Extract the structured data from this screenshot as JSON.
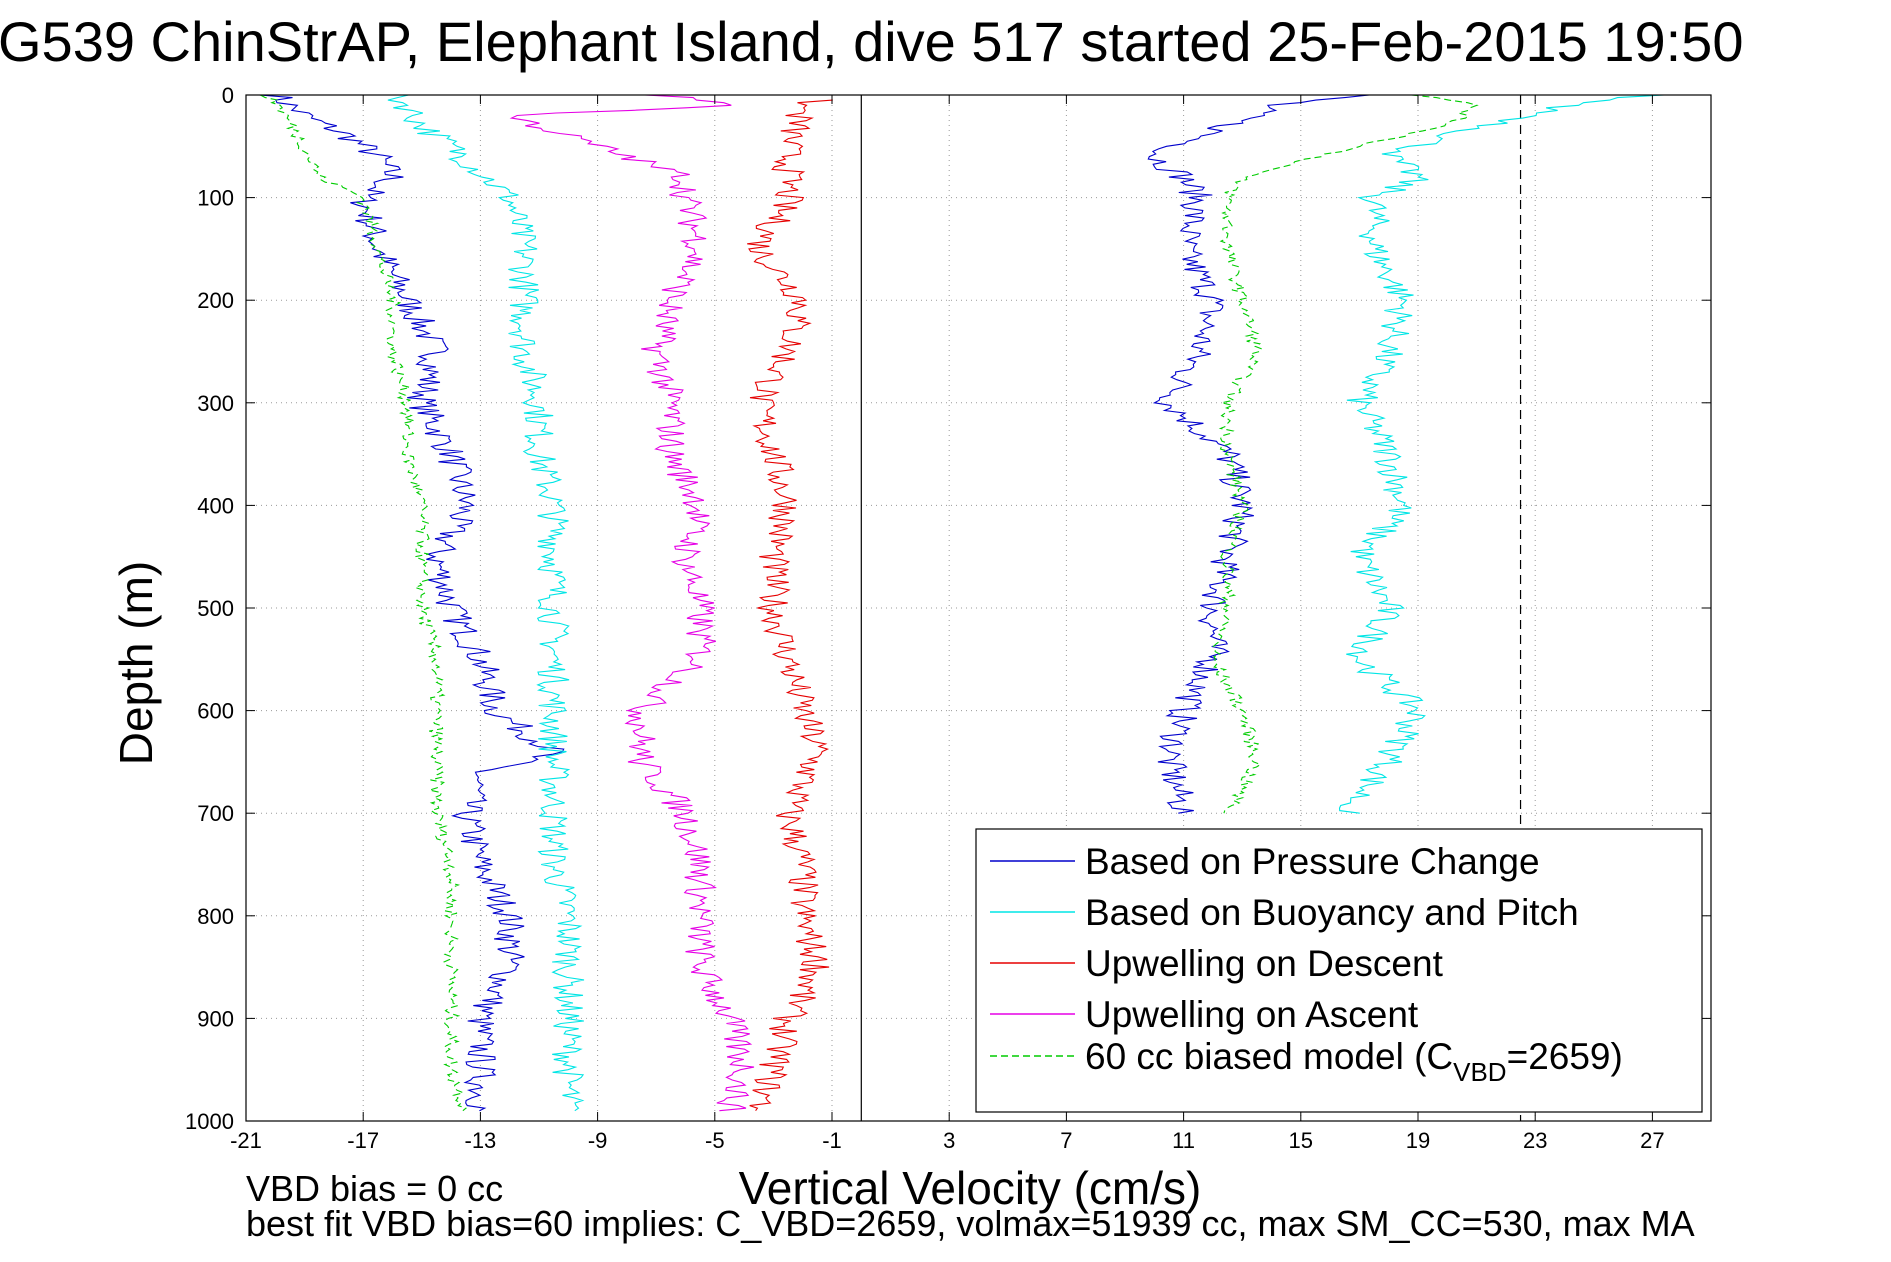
{
  "title": "G539 ChinStrAP, Elephant Island, dive 517 started 25-Feb-2015 19:50",
  "footer": {
    "line1": "VBD bias = 0 cc",
    "line2": "best fit VBD bias=60 implies: C_VBD=2659, volmax=51939 cc, max SM_CC=530, max MA"
  },
  "chart_data": {
    "type": "line",
    "xlabel": "Vertical Velocity (cm/s)",
    "ylabel": "Depth (m)",
    "xlim": [
      -21,
      29
    ],
    "ylim": [
      0,
      1000
    ],
    "y_reversed": true,
    "xticks": [
      -21,
      -17,
      -13,
      -9,
      -5,
      -1,
      3,
      7,
      11,
      15,
      19,
      23,
      27
    ],
    "yticks": [
      0,
      100,
      200,
      300,
      400,
      500,
      600,
      700,
      800,
      900,
      1000
    ],
    "grid": true,
    "legend_position": "bottom-right",
    "reference_lines": [
      {
        "x": 0,
        "style": "solid",
        "color": "#000000"
      },
      {
        "x": 22.5,
        "style": "dashed",
        "color": "#000000"
      }
    ],
    "series": [
      {
        "name": "Based on Pressure Change",
        "color": "#0000cc",
        "style": "solid",
        "segments": [
          {
            "y": [
              0,
              10,
              20,
              40,
              60,
              80,
              100,
              150,
              200,
              250,
              300,
              350,
              400,
              450,
              500,
              550,
              600,
              620,
              640,
              660,
              700,
              750,
              800,
              850,
              900,
              950,
              990
            ],
            "x": [
              -20,
              -19.5,
              -19,
              -17.5,
              -16.5,
              -16,
              -17,
              -16.5,
              -15.5,
              -14.5,
              -15,
              -14,
              -13.5,
              -14.5,
              -14,
              -13,
              -12.5,
              -11.5,
              -10.5,
              -13,
              -13.5,
              -13,
              -12,
              -12,
              -13,
              -13,
              -13
            ]
          },
          {
            "y": [
              0,
              10,
              30,
              60,
              80,
              100,
              150,
              200,
              250,
              300,
              350,
              400,
              450,
              500,
              550,
              600,
              650,
              700
            ],
            "x": [
              17,
              14,
              12.5,
              10,
              11,
              11.5,
              11,
              12,
              11.5,
              10.5,
              12.5,
              13,
              12.5,
              12,
              12,
              11,
              10.5,
              11
            ]
          }
        ]
      },
      {
        "name": "Based on Buoyancy and Pitch",
        "color": "#00e5e5",
        "style": "solid",
        "segments": [
          {
            "y": [
              0,
              10,
              30,
              50,
              100,
              150,
              200,
              250,
              300,
              350,
              400,
              450,
              500,
              550,
              600,
              650,
              700,
              750,
              800,
              850,
              900,
              950,
              990
            ],
            "x": [
              -16,
              -15.5,
              -15,
              -14,
              -12,
              -11.5,
              -11.5,
              -11.5,
              -11,
              -11,
              -10.5,
              -10.5,
              -10.5,
              -10.5,
              -10.5,
              -10.5,
              -10.5,
              -10.5,
              -10,
              -10,
              -10,
              -10,
              -10
            ]
          },
          {
            "y": [
              0,
              10,
              20,
              40,
              60,
              80,
              100,
              150,
              200,
              250,
              300,
              350,
              400,
              450,
              500,
              550,
              600,
              650,
              700
            ],
            "x": [
              27,
              24,
              23,
              20,
              18,
              19,
              17.5,
              17.5,
              18.5,
              18,
              17,
              18,
              18.5,
              17,
              18,
              17,
              19,
              18,
              16.5
            ]
          }
        ]
      },
      {
        "name": "Upwelling on Descent",
        "color": "#e50000",
        "style": "solid",
        "segments": [
          {
            "y": [
              5,
              10,
              50,
              100,
              150,
              200,
              250,
              300,
              350,
              400,
              450,
              500,
              550,
              600,
              640,
              700,
              750,
              800,
              850,
              900,
              950,
              990
            ],
            "x": [
              -1.5,
              -2,
              -2.5,
              -2.5,
              -3.5,
              -2,
              -2.5,
              -3.5,
              -3,
              -2.5,
              -3,
              -3,
              -2.5,
              -2,
              -1.5,
              -2.5,
              -2,
              -2,
              -1.5,
              -2.5,
              -3,
              -3.5
            ]
          }
        ]
      },
      {
        "name": "Upwelling on Ascent",
        "color": "#e500e5",
        "style": "solid",
        "segments": [
          {
            "y": [
              0,
              10,
              20,
              40,
              60,
              80,
              100,
              150,
              200,
              250,
              300,
              350,
              400,
              450,
              500,
              550,
              600,
              650,
              700,
              750,
              800,
              850,
              900,
              950,
              990
            ],
            "x": [
              -7,
              -4,
              -12,
              -10,
              -8,
              -6,
              -6,
              -5.5,
              -6.5,
              -7,
              -6.5,
              -6.5,
              -5.5,
              -6,
              -5.5,
              -5.5,
              -7.5,
              -7.5,
              -6,
              -5.5,
              -5.5,
              -5.5,
              -4.5,
              -4,
              -4.5
            ]
          }
        ]
      },
      {
        "name": "60 cc biased model (C_VBD=2659)",
        "color": "#00cc00",
        "style": "dashed",
        "segments": [
          {
            "y": [
              0,
              5,
              50,
              80,
              100,
              150,
              200,
              250,
              300,
              350,
              400,
              450,
              500,
              550,
              600,
              650,
              700,
              750,
              800,
              850,
              900,
              950,
              990
            ],
            "x": [
              -20.5,
              -20,
              -19,
              -18.5,
              -17,
              -16.5,
              -16,
              -16,
              -15.5,
              -15.5,
              -15,
              -15,
              -15,
              -14.5,
              -14.5,
              -14.5,
              -14.5,
              -14,
              -14,
              -14,
              -14,
              -14,
              -13.5
            ]
          },
          {
            "y": [
              0,
              10,
              30,
              50,
              80,
              100,
              150,
              200,
              250,
              300,
              350,
              400,
              450,
              500,
              550,
              600,
              650,
              700
            ],
            "x": [
              19,
              21,
              20,
              17,
              13,
              12.5,
              12.5,
              13,
              13.5,
              12.5,
              12.5,
              13,
              12.5,
              12.5,
              12,
              13,
              13.5,
              12.5
            ]
          }
        ]
      }
    ]
  },
  "legend": {
    "items": [
      {
        "label": "Based on Pressure Change",
        "color": "#0000cc",
        "dash": false
      },
      {
        "label": "Based on Buoyancy and Pitch",
        "color": "#00e5e5",
        "dash": false
      },
      {
        "label": "Upwelling on Descent",
        "color": "#e50000",
        "dash": false
      },
      {
        "label": "Upwelling on Ascent",
        "color": "#e500e5",
        "dash": false
      },
      {
        "label": "60 cc biased model (C",
        "sub": "VBD",
        "suffix": "=2659)",
        "color": "#00cc00",
        "dash": true
      }
    ]
  }
}
